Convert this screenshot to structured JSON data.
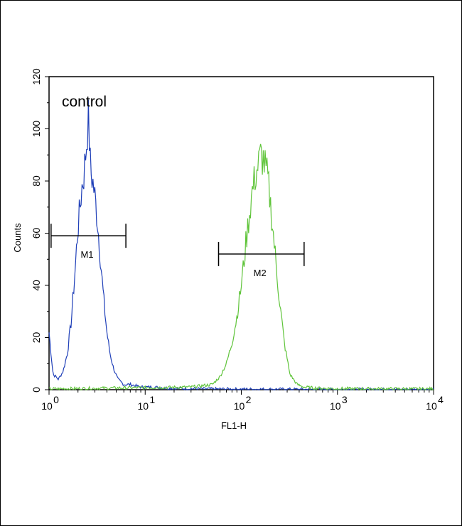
{
  "chart_data": {
    "type": "line",
    "title": "",
    "xlabel": "FL1-H",
    "ylabel": "Counts",
    "x_scale": "log",
    "xlim": [
      1,
      10000
    ],
    "ylim": [
      0,
      120
    ],
    "x_ticks": [
      1,
      10,
      100,
      1000,
      10000
    ],
    "y_ticks": [
      0,
      20,
      40,
      60,
      80,
      100,
      120
    ],
    "y_tick_labels": [
      "0",
      "20",
      "40",
      "60",
      "80",
      "100",
      "120"
    ],
    "grid": false,
    "annotation": "control",
    "series": [
      {
        "color": "#1f3fb8",
        "x": [
          1.0,
          1.1,
          1.25,
          1.4,
          1.55,
          1.7,
          1.85,
          2.0,
          2.1,
          2.2,
          2.3,
          2.4,
          2.5,
          2.55,
          2.6,
          2.7,
          2.85,
          3.0,
          3.2,
          3.4,
          3.6,
          3.8,
          4.0,
          4.3,
          4.7,
          5.2,
          6.0,
          7.0,
          9.0,
          12,
          20,
          40,
          100,
          1000,
          10000
        ],
        "y": [
          22,
          6,
          4,
          7,
          14,
          26,
          44,
          62,
          70,
          78,
          82,
          90,
          98,
          105,
          100,
          84,
          80,
          74,
          64,
          52,
          40,
          30,
          22,
          14,
          8,
          4,
          2,
          2,
          1,
          1,
          0.5,
          0.3,
          0.2,
          0.1,
          0.1
        ]
      },
      {
        "color": "#5fc43a",
        "x": [
          1,
          10,
          30,
          50,
          60,
          70,
          80,
          90,
          100,
          110,
          120,
          130,
          140,
          150,
          160,
          170,
          180,
          190,
          200,
          215,
          230,
          250,
          280,
          320,
          380,
          450,
          600,
          1000,
          10000
        ],
        "y": [
          0.3,
          0.8,
          1,
          2,
          5,
          10,
          18,
          28,
          40,
          54,
          66,
          76,
          82,
          86,
          90,
          88,
          84,
          80,
          72,
          60,
          48,
          34,
          18,
          6,
          2,
          1,
          0.6,
          0.4,
          0.3
        ]
      }
    ],
    "markers": [
      {
        "label": "M1",
        "x_start": 1.05,
        "x_end": 6.3,
        "y": 59
      },
      {
        "label": "M2",
        "x_start": 58,
        "x_end": 450,
        "y": 52
      }
    ]
  }
}
